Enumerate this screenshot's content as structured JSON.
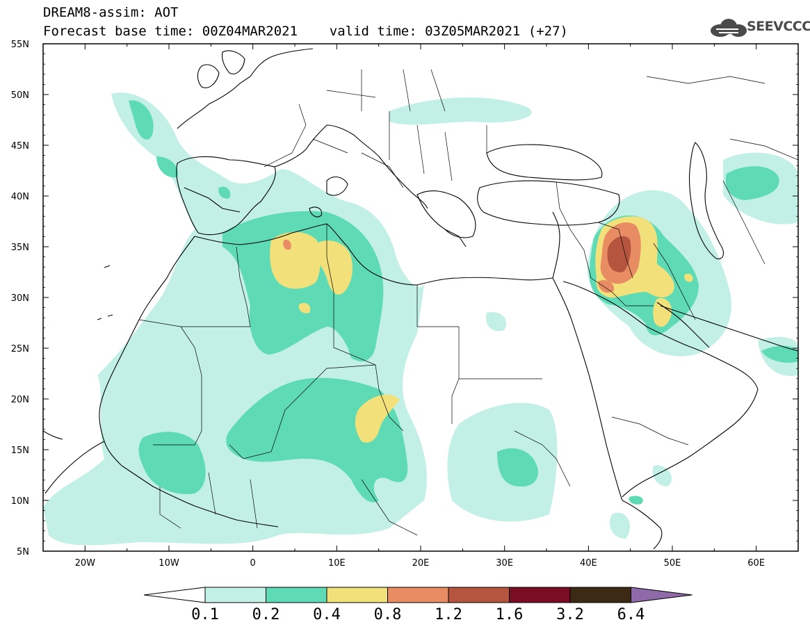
{
  "header": {
    "title_line1": "DREAM8-assim: AOT",
    "title_line2": "Forecast base time: 00Z04MAR2021    valid time: 03Z05MAR2021 (+27)",
    "logo_text": "SEEVCCC",
    "logo_icon": "cloud-icon"
  },
  "map": {
    "lon_labels": [
      "20W",
      "10W",
      "0",
      "10E",
      "20E",
      "30E",
      "40E",
      "50E",
      "60E"
    ],
    "lat_labels": [
      "55N",
      "50N",
      "45N",
      "40N",
      "35N",
      "30N",
      "25N",
      "20N",
      "15N",
      "10N",
      "5N"
    ],
    "lon_range": [
      -25,
      65
    ],
    "lat_range": [
      5,
      55
    ]
  },
  "colorbar": {
    "levels": [
      "0.1",
      "0.2",
      "0.4",
      "0.8",
      "1.2",
      "1.6",
      "3.2",
      "6.4"
    ],
    "colors": [
      "#ffffff",
      "#c2f0e6",
      "#5edbb4",
      "#f2e17a",
      "#e88c64",
      "#b55540",
      "#7a0c24",
      "#3d2a14",
      "#8f6aa8"
    ]
  }
}
